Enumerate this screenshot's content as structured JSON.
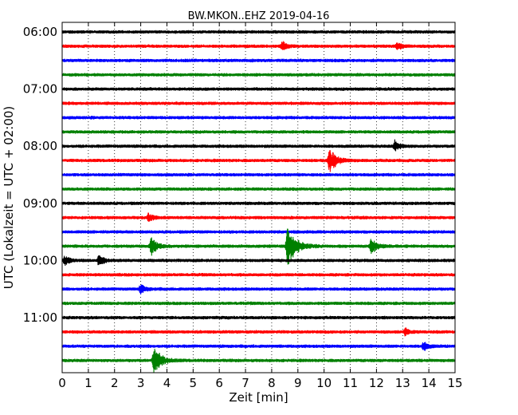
{
  "chart_data": {
    "type": "line",
    "title": "BW.MKON..EHZ 2019-04-16",
    "xlabel": "Zeit  [min]",
    "ylabel": "UTC (Lokalzeit = UTC + 02:00)",
    "xlim": [
      0,
      15
    ],
    "x_ticks": [
      "0",
      "1",
      "2",
      "3",
      "4",
      "5",
      "6",
      "7",
      "8",
      "9",
      "10",
      "11",
      "12",
      "13",
      "14",
      "15"
    ],
    "y_tick_labels": [
      "06:00",
      "07:00",
      "08:00",
      "09:00",
      "10:00",
      "11:00"
    ],
    "trace_interval_min": 15,
    "first_trace": "06:00",
    "trace_colors": [
      "#000000",
      "#ff0000",
      "#0000ff",
      "#008000"
    ],
    "grid": "vertical dotted at each minute",
    "traces": [
      {
        "start": "06:00",
        "color": "#000000",
        "events": []
      },
      {
        "start": "06:15",
        "color": "#ff0000",
        "events": [
          {
            "t": 8.4,
            "amp": 0.5
          },
          {
            "t": 12.8,
            "amp": 0.45
          }
        ]
      },
      {
        "start": "06:30",
        "color": "#0000ff",
        "events": []
      },
      {
        "start": "06:45",
        "color": "#008000",
        "events": []
      },
      {
        "start": "07:00",
        "color": "#000000",
        "events": []
      },
      {
        "start": "07:15",
        "color": "#ff0000",
        "events": []
      },
      {
        "start": "07:30",
        "color": "#0000ff",
        "events": []
      },
      {
        "start": "07:45",
        "color": "#008000",
        "events": []
      },
      {
        "start": "08:00",
        "color": "#000000",
        "events": [
          {
            "t": 12.7,
            "amp": 0.6
          }
        ]
      },
      {
        "start": "08:15",
        "color": "#ff0000",
        "events": [
          {
            "t": 10.2,
            "amp": 1.4
          }
        ]
      },
      {
        "start": "08:30",
        "color": "#0000ff",
        "events": []
      },
      {
        "start": "08:45",
        "color": "#008000",
        "events": []
      },
      {
        "start": "09:00",
        "color": "#000000",
        "events": []
      },
      {
        "start": "09:15",
        "color": "#ff0000",
        "events": [
          {
            "t": 3.3,
            "amp": 0.5
          }
        ]
      },
      {
        "start": "09:30",
        "color": "#0000ff",
        "events": []
      },
      {
        "start": "09:45",
        "color": "#008000",
        "events": [
          {
            "t": 3.4,
            "amp": 1.0
          },
          {
            "t": 8.6,
            "amp": 2.2
          },
          {
            "t": 11.8,
            "amp": 0.9
          }
        ]
      },
      {
        "start": "10:00",
        "color": "#000000",
        "events": [
          {
            "t": 0.1,
            "amp": 0.5
          },
          {
            "t": 1.4,
            "amp": 0.6
          }
        ]
      },
      {
        "start": "10:15",
        "color": "#ff0000",
        "events": []
      },
      {
        "start": "10:30",
        "color": "#0000ff",
        "events": [
          {
            "t": 3.0,
            "amp": 0.45
          }
        ]
      },
      {
        "start": "10:45",
        "color": "#008000",
        "events": []
      },
      {
        "start": "11:00",
        "color": "#000000",
        "events": []
      },
      {
        "start": "11:15",
        "color": "#ff0000",
        "events": [
          {
            "t": 13.1,
            "amp": 0.4
          }
        ]
      },
      {
        "start": "11:30",
        "color": "#0000ff",
        "events": [
          {
            "t": 13.8,
            "amp": 0.5
          }
        ]
      },
      {
        "start": "11:45",
        "color": "#008000",
        "events": [
          {
            "t": 3.5,
            "amp": 1.6
          }
        ]
      }
    ]
  }
}
